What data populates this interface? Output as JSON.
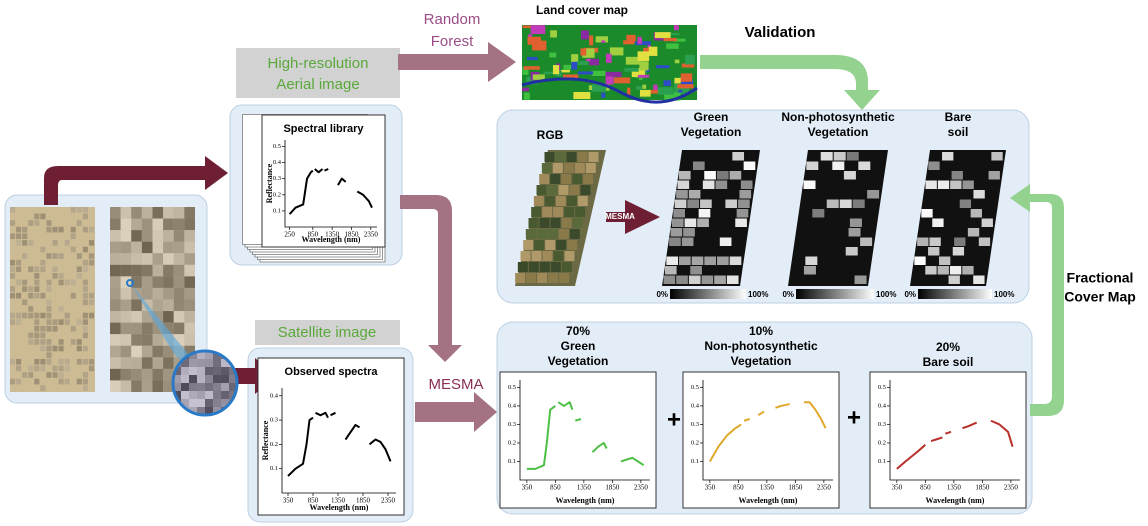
{
  "random_forest": [
    "Random",
    "Forest"
  ],
  "land_cover_map": "Land cover map",
  "validation": "Validation",
  "aerial_label": [
    "High-resolution",
    "Aerial image"
  ],
  "satellite_label": "Satellite image",
  "mesma_big": "MESMA",
  "mesma_small": "MESMA",
  "fractional_cover": [
    "Fractional",
    "Cover Map"
  ],
  "plus": [
    "+",
    "+"
  ],
  "spectral_library": {
    "title": "Spectral library",
    "y_label": "Reflectance",
    "x_label": "Wavelength (nm)",
    "xticks": [
      250,
      850,
      1350,
      1850,
      2350
    ],
    "yticks": [
      0.1,
      0.2,
      0.3,
      0.4,
      0.5
    ]
  },
  "observed_spectra": {
    "title": "Observed spectra",
    "y_label": "Reflectance",
    "x_label": "Wavelength (nm)",
    "xticks": [
      350,
      850,
      1350,
      1850,
      2350
    ],
    "yticks": [
      0.1,
      0.2,
      0.3,
      0.4
    ]
  },
  "maps": {
    "rgb": "RGB",
    "panels": [
      {
        "title": [
          "Green",
          "Vegetation"
        ],
        "scale": [
          "0%",
          "100%"
        ]
      },
      {
        "title": [
          "Non-photosynthetic",
          "Vegetation"
        ],
        "scale": [
          "0%",
          "100%"
        ]
      },
      {
        "title": [
          "Bare",
          "soil"
        ],
        "scale": [
          "0%",
          "100%"
        ]
      }
    ]
  },
  "fractions": [
    {
      "title": [
        "70%",
        "Green",
        "Vegetation"
      ],
      "x_label": "Wavelength (nm)",
      "xticks": [
        350,
        850,
        1350,
        1850,
        2350
      ],
      "yticks": [
        0.1,
        0.2,
        0.3,
        0.4,
        0.5
      ]
    },
    {
      "title": [
        "10%",
        "Non-photosynthetic",
        "Vegetation"
      ],
      "x_label": "Wavelength (nm)",
      "xticks": [
        350,
        850,
        1350,
        1850,
        2350
      ],
      "yticks": [
        0.1,
        0.2,
        0.3,
        0.4,
        0.5
      ]
    },
    {
      "title": [
        "20%",
        "Bare soil"
      ],
      "x_label": "Wavelength (nm)",
      "xticks": [
        350,
        850,
        1350,
        1850,
        2350
      ],
      "yticks": [
        0.1,
        0.2,
        0.3,
        0.4,
        0.5
      ]
    }
  ]
}
